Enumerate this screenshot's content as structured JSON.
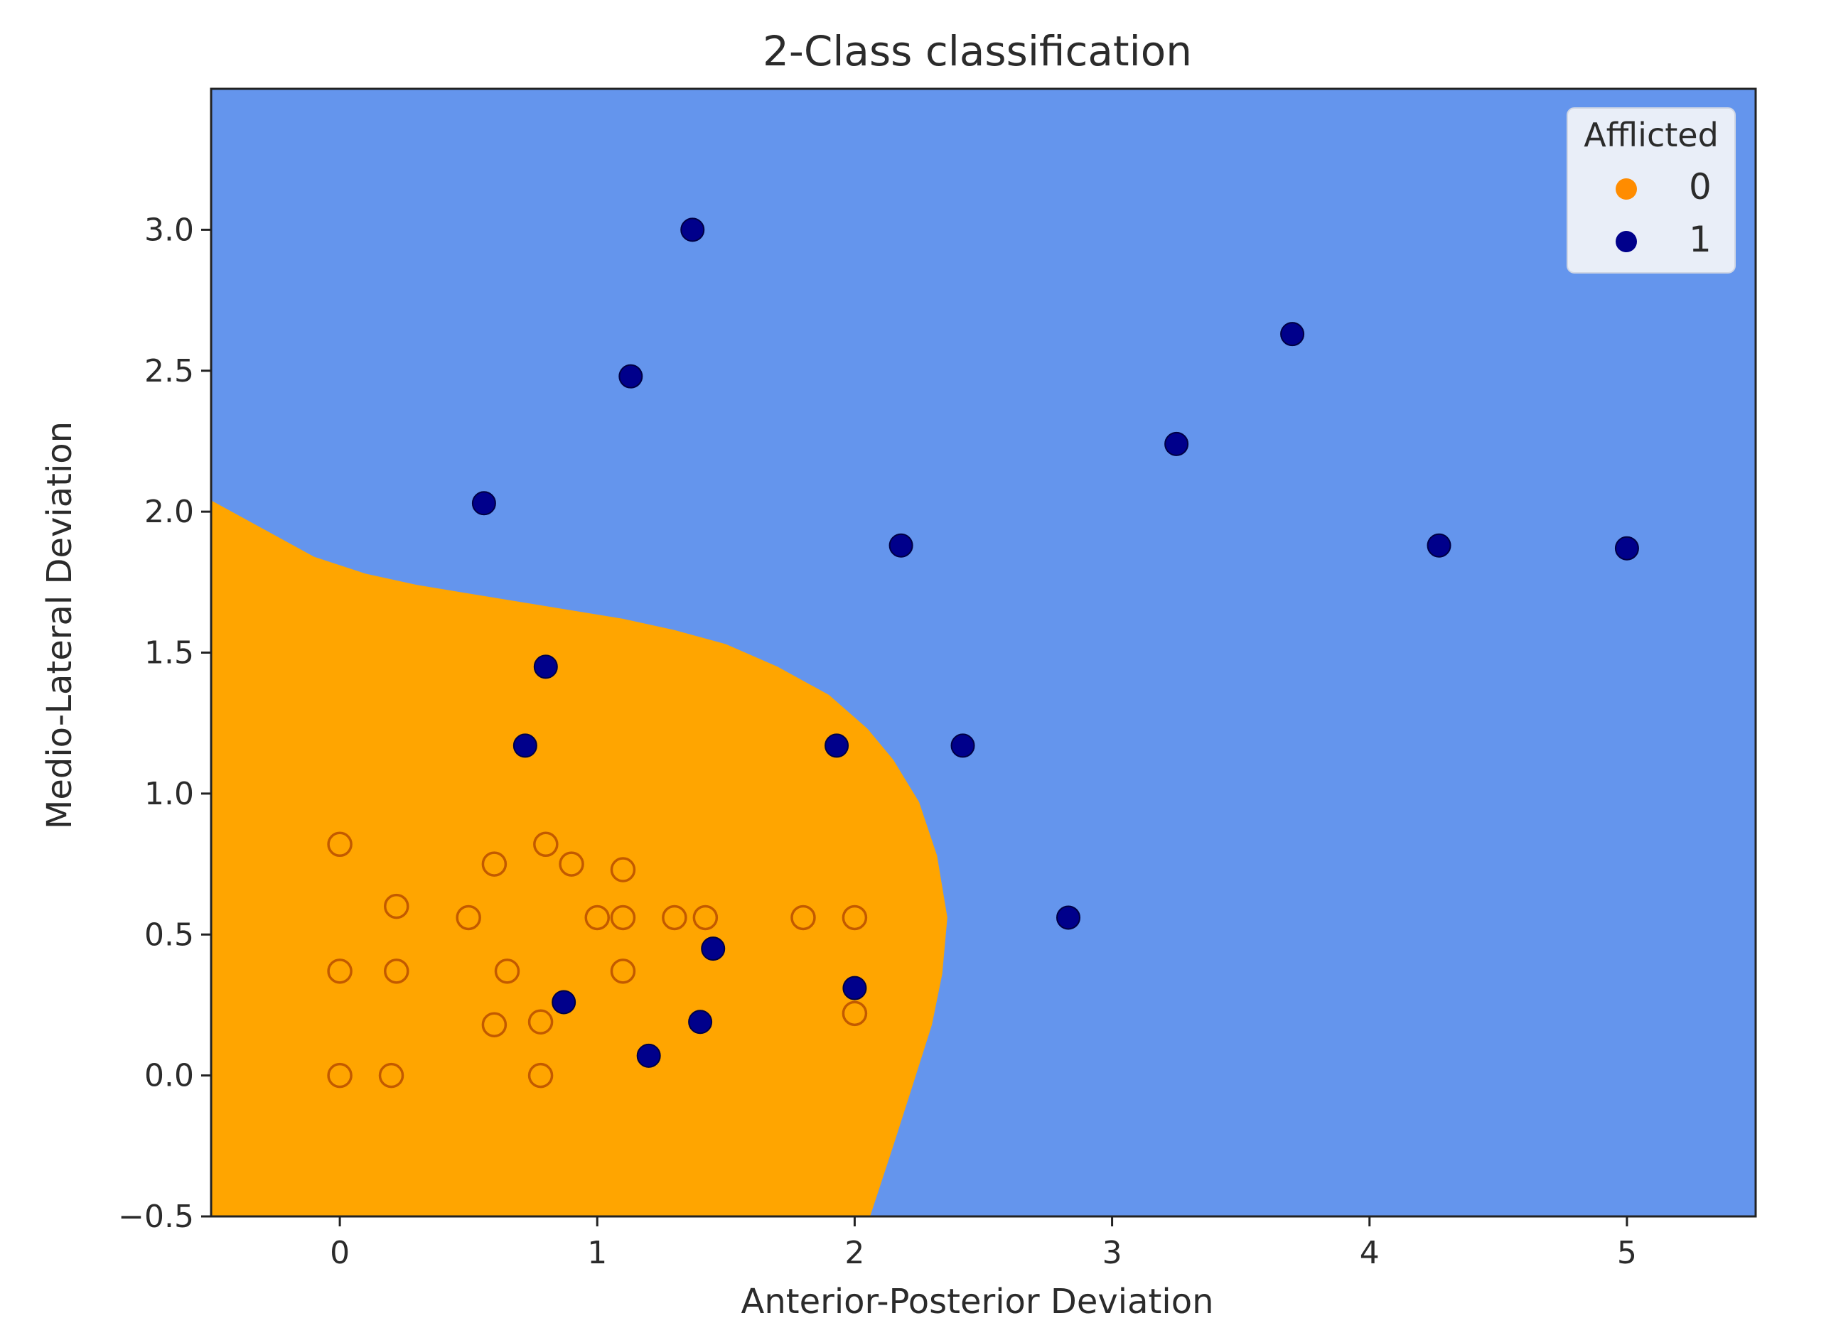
{
  "chart_data": {
    "type": "scatter",
    "title": "2-Class classification",
    "xlabel": "Anterior-Posterior Deviation",
    "ylabel": "Medio-Lateral Deviation",
    "xlim": [
      -0.5,
      5.5
    ],
    "ylim": [
      -0.5,
      3.5
    ],
    "xticks": [
      "0",
      "1",
      "2",
      "3",
      "4",
      "5"
    ],
    "xtick_values": [
      0,
      1,
      2,
      3,
      4,
      5
    ],
    "yticks": [
      "−0.5",
      "0.0",
      "0.5",
      "1.0",
      "1.5",
      "2.0",
      "2.5",
      "3.0"
    ],
    "ytick_values": [
      -0.5,
      0,
      0.5,
      1,
      1.5,
      2,
      2.5,
      3
    ],
    "grid": false,
    "legend": {
      "title": "Afflicted",
      "position": "top-right"
    },
    "regions": {
      "class_0_color": "#ffa500",
      "class_1_color": "#6495ed",
      "boundary": [
        [
          -0.5,
          2.04
        ],
        [
          -0.3,
          1.94
        ],
        [
          -0.1,
          1.84
        ],
        [
          0.1,
          1.78
        ],
        [
          0.3,
          1.74
        ],
        [
          0.5,
          1.71
        ],
        [
          0.7,
          1.68
        ],
        [
          0.9,
          1.65
        ],
        [
          1.1,
          1.62
        ],
        [
          1.3,
          1.58
        ],
        [
          1.5,
          1.53
        ],
        [
          1.7,
          1.45
        ],
        [
          1.9,
          1.35
        ],
        [
          2.05,
          1.23
        ],
        [
          2.15,
          1.12
        ],
        [
          2.25,
          0.97
        ],
        [
          2.32,
          0.78
        ],
        [
          2.36,
          0.56
        ],
        [
          2.34,
          0.36
        ],
        [
          2.3,
          0.18
        ],
        [
          2.22,
          -0.05
        ],
        [
          2.15,
          -0.25
        ],
        [
          2.06,
          -0.5
        ]
      ]
    },
    "series": [
      {
        "name": "0",
        "color": "#ff8c00",
        "marker": "hollow-circle",
        "points": [
          [
            0,
            0.82
          ],
          [
            0,
            0.37
          ],
          [
            0,
            0.0
          ],
          [
            0.2,
            0.0
          ],
          [
            0.22,
            0.6
          ],
          [
            0.22,
            0.37
          ],
          [
            0.5,
            0.56
          ],
          [
            0.6,
            0.75
          ],
          [
            0.6,
            0.18
          ],
          [
            0.65,
            0.37
          ],
          [
            0.78,
            0.19
          ],
          [
            0.78,
            0.0
          ],
          [
            0.8,
            0.82
          ],
          [
            0.9,
            0.75
          ],
          [
            1.0,
            0.56
          ],
          [
            1.1,
            0.73
          ],
          [
            1.1,
            0.56
          ],
          [
            1.1,
            0.37
          ],
          [
            1.3,
            0.56
          ],
          [
            1.42,
            0.56
          ],
          [
            1.8,
            0.56
          ],
          [
            2.0,
            0.56
          ],
          [
            2.0,
            0.22
          ]
        ]
      },
      {
        "name": "1",
        "color": "#00008b",
        "marker": "filled-circle",
        "points": [
          [
            1.37,
            3.0
          ],
          [
            1.13,
            2.48
          ],
          [
            3.7,
            2.63
          ],
          [
            3.25,
            2.24
          ],
          [
            0.56,
            2.03
          ],
          [
            2.18,
            1.88
          ],
          [
            4.27,
            1.88
          ],
          [
            5.0,
            1.87
          ],
          [
            0.8,
            1.45
          ],
          [
            0.72,
            1.17
          ],
          [
            1.93,
            1.17
          ],
          [
            2.42,
            1.17
          ],
          [
            2.83,
            0.56
          ],
          [
            1.45,
            0.45
          ],
          [
            2.0,
            0.31
          ],
          [
            0.87,
            0.26
          ],
          [
            1.4,
            0.19
          ],
          [
            1.2,
            0.07
          ]
        ]
      }
    ]
  }
}
